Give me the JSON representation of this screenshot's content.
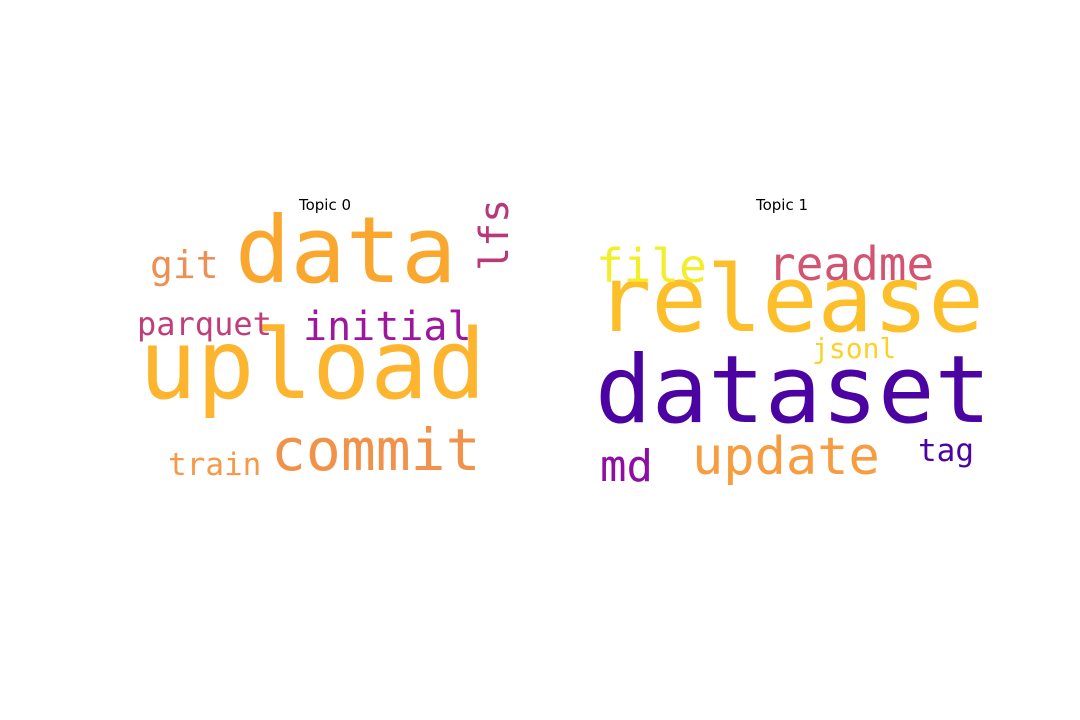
{
  "chart_data": [
    {
      "type": "wordcloud",
      "title": "Topic 0",
      "colormap": "plasma",
      "words": [
        {
          "text": "upload",
          "weight": 1.0,
          "color": "#fdb42f",
          "rotation": 0
        },
        {
          "text": "data",
          "weight": 0.92,
          "color": "#f9a72e",
          "rotation": 0
        },
        {
          "text": "commit",
          "weight": 0.6,
          "color": "#f1924b",
          "rotation": 0
        },
        {
          "text": "initial",
          "weight": 0.4,
          "color": "#9c179e",
          "rotation": 0
        },
        {
          "text": "lfs",
          "weight": 0.38,
          "color": "#b7397a",
          "rotation": -90
        },
        {
          "text": "git",
          "weight": 0.36,
          "color": "#ee8f54",
          "rotation": 0
        },
        {
          "text": "parquet",
          "weight": 0.3,
          "color": "#c03f7a",
          "rotation": 0
        },
        {
          "text": "train",
          "weight": 0.28,
          "color": "#f59a48",
          "rotation": 0
        }
      ]
    },
    {
      "type": "wordcloud",
      "title": "Topic 1",
      "colormap": "plasma",
      "words": [
        {
          "text": "dataset",
          "weight": 1.0,
          "color": "#4b03a1",
          "rotation": 0
        },
        {
          "text": "release",
          "weight": 0.96,
          "color": "#fcbf2a",
          "rotation": 0
        },
        {
          "text": "update",
          "weight": 0.58,
          "color": "#f79c3f",
          "rotation": 0
        },
        {
          "text": "readme",
          "weight": 0.52,
          "color": "#d35470",
          "rotation": 0
        },
        {
          "text": "file",
          "weight": 0.5,
          "color": "#f3ee2a",
          "rotation": 0
        },
        {
          "text": "md",
          "weight": 0.48,
          "color": "#8f0da4",
          "rotation": 0
        },
        {
          "text": "tag",
          "weight": 0.3,
          "color": "#4b03a1",
          "rotation": 0
        },
        {
          "text": "jsonl",
          "weight": 0.28,
          "color": "#fcd22a",
          "rotation": 0
        }
      ]
    }
  ]
}
